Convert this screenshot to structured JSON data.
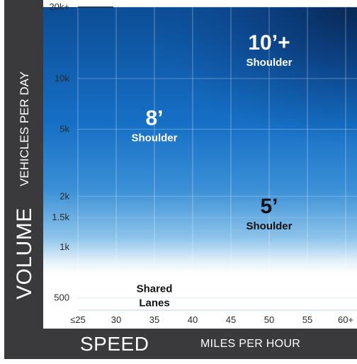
{
  "chart_data": {
    "type": "heatmap",
    "ylabel": "VOLUME",
    "ylabel_detail": "VEHICLES PER DAY",
    "xlabel": "SPEED",
    "xlabel_detail": "MILES PER HOUR",
    "x_ticks": [
      "≤25",
      "30",
      "35",
      "40",
      "45",
      "50",
      "55",
      "60+"
    ],
    "x_values": [
      25,
      30,
      35,
      40,
      45,
      50,
      55,
      60
    ],
    "xlim": [
      20.5,
      60.5
    ],
    "y_ticks": [
      "500",
      "1k",
      "1.5k",
      "2k",
      "5k",
      "10k",
      "20k+"
    ],
    "y_values": [
      500,
      1000,
      1500,
      2000,
      5000,
      10000,
      20000
    ],
    "y_scale": "log",
    "ylim": [
      300,
      20000
    ],
    "zones": [
      {
        "size": "",
        "label": "Shared Lanes",
        "speed": 35,
        "volume": 500,
        "color": "#ffffff"
      },
      {
        "size": "5’",
        "label": "Shoulder",
        "speed": 50,
        "volume": 1500,
        "color": "#5aa6df"
      },
      {
        "size": "8’",
        "label": "Shoulder",
        "speed": 35,
        "volume": 5000,
        "color": "#1a73c8"
      },
      {
        "size": "10’+",
        "label": "Shoulder",
        "speed": 50,
        "volume": 14000,
        "color": "#0a3a78"
      }
    ]
  }
}
